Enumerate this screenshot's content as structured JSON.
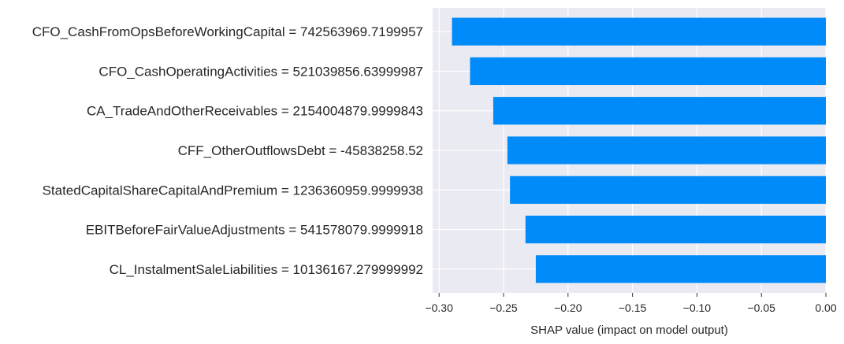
{
  "chart_data": {
    "type": "bar",
    "orientation": "horizontal",
    "xlabel": "SHAP value (impact on model output)",
    "xlim": [
      -0.305,
      0.0
    ],
    "xticks": [
      "−0.30",
      "−0.25",
      "−0.20",
      "−0.15",
      "−0.10",
      "−0.05",
      "0.00"
    ],
    "xtick_values": [
      -0.3,
      -0.25,
      -0.2,
      -0.15,
      -0.1,
      -0.05,
      0.0
    ],
    "grid": true,
    "bar_color": "#008bfb",
    "background_color": "#eaeaf2",
    "categories": [
      "CFO_CashFromOpsBeforeWorkingCapital = 742563969.7199957",
      "CFO_CashOperatingActivities = 521039856.63999987",
      "CA_TradeAndOtherReceivables = 2154004879.9999843",
      "CFF_OtherOutflowsDebt = -45838258.52",
      "StatedCapitalShareCapitalAndPremium = 1236360959.9999938",
      "EBITBeforeFairValueAdjustments = 541578079.9999918",
      "CL_InstalmentSaleLiabilities = 10136167.279999992"
    ],
    "values": [
      -0.29,
      -0.276,
      -0.258,
      -0.247,
      -0.245,
      -0.233,
      -0.225
    ]
  }
}
